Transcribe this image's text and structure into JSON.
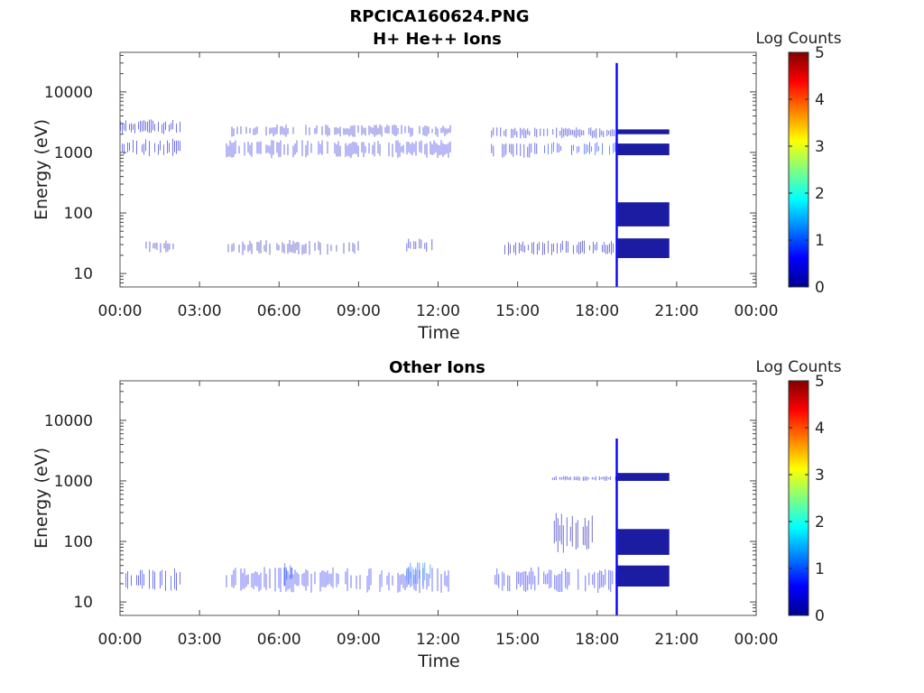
{
  "figure": {
    "title": "RPCICA160624.PNG",
    "x_tick_labels": [
      "00:00",
      "03:00",
      "06:00",
      "09:00",
      "12:00",
      "15:00",
      "18:00",
      "21:00",
      "00:00"
    ]
  },
  "colorscale": {
    "stops": [
      "#00008f",
      "#0000ff",
      "#0080ff",
      "#00ffff",
      "#80ff80",
      "#ffff00",
      "#ff8000",
      "#ff0000",
      "#800000"
    ],
    "label": "Log Counts",
    "ticks": [
      "0",
      "1",
      "2",
      "3",
      "4",
      "5"
    ]
  },
  "chart_data": [
    {
      "type": "heatmap",
      "title": "H+ He++ Ions",
      "xlabel": "Time",
      "ylabel": "Energy (eV)",
      "x_range_hours": [
        0,
        24
      ],
      "y_range_eV": [
        6,
        45000
      ],
      "y_scale": "log",
      "y_tick_labels": [
        "10",
        "100",
        "1000",
        "10000"
      ],
      "colorbar": {
        "label": "Log Counts",
        "range": [
          0,
          5
        ]
      },
      "data_gaps_hours": [
        [
          2.3,
          4.0
        ],
        [
          12.5,
          14.0
        ],
        [
          20.7,
          24.0
        ]
      ],
      "bands": [
        {
          "t_start": 0.0,
          "t_end": 2.3,
          "e_min": 2000,
          "e_max": 3500,
          "log_counts": 0.35
        },
        {
          "t_start": 0.0,
          "t_end": 2.3,
          "e_min": 850,
          "e_max": 1700,
          "log_counts": 0.45
        },
        {
          "t_start": 0.9,
          "t_end": 2.1,
          "e_min": 22,
          "e_max": 36,
          "log_counts": 0.25
        },
        {
          "t_start": 4.0,
          "t_end": 12.5,
          "e_min": 1800,
          "e_max": 2900,
          "log_counts": 0.35
        },
        {
          "t_start": 4.0,
          "t_end": 12.5,
          "e_min": 800,
          "e_max": 1600,
          "log_counts": 0.45
        },
        {
          "t_start": 4.0,
          "t_end": 9.0,
          "e_min": 20,
          "e_max": 36,
          "log_counts": 0.2
        },
        {
          "t_start": 10.8,
          "t_end": 11.9,
          "e_min": 22,
          "e_max": 38,
          "log_counts": 0.35
        },
        {
          "t_start": 14.0,
          "t_end": 18.7,
          "e_min": 1700,
          "e_max": 2600,
          "log_counts": 0.35
        },
        {
          "t_start": 14.0,
          "t_end": 16.0,
          "e_min": 800,
          "e_max": 1500,
          "log_counts": 0.45
        },
        {
          "t_start": 16.0,
          "t_end": 18.7,
          "e_min": 900,
          "e_max": 1500,
          "log_counts": 0.8
        },
        {
          "t_start": 14.5,
          "t_end": 18.7,
          "e_min": 20,
          "e_max": 35,
          "log_counts": 0.2
        },
        {
          "t_start": 18.7,
          "t_end": 18.78,
          "e_min": 6,
          "e_max": 30000,
          "log_counts": 0.6
        },
        {
          "t_start": 18.78,
          "t_end": 20.7,
          "e_min": 900,
          "e_max": 1400,
          "log_counts": 0.05
        },
        {
          "t_start": 18.78,
          "t_end": 20.7,
          "e_min": 2000,
          "e_max": 2400,
          "log_counts": 0.05
        },
        {
          "t_start": 18.78,
          "t_end": 20.7,
          "e_min": 60,
          "e_max": 150,
          "log_counts": 0.05
        },
        {
          "t_start": 18.78,
          "t_end": 20.7,
          "e_min": 18,
          "e_max": 38,
          "log_counts": 0.05
        }
      ]
    },
    {
      "type": "heatmap",
      "title": "Other Ions",
      "xlabel": "Time",
      "ylabel": "Energy (eV)",
      "x_range_hours": [
        0,
        24
      ],
      "y_range_eV": [
        6,
        45000
      ],
      "y_scale": "log",
      "y_tick_labels": [
        "10",
        "100",
        "1000",
        "10000"
      ],
      "colorbar": {
        "label": "Log Counts",
        "range": [
          0,
          5
        ]
      },
      "data_gaps_hours": [
        [
          2.3,
          4.0
        ],
        [
          12.5,
          14.0
        ],
        [
          20.7,
          24.0
        ]
      ],
      "bands": [
        {
          "t_start": 0.0,
          "t_end": 2.3,
          "e_min": 14,
          "e_max": 38,
          "log_counts": 0.6
        },
        {
          "t_start": 4.0,
          "t_end": 12.5,
          "e_min": 14,
          "e_max": 38,
          "log_counts": 0.6
        },
        {
          "t_start": 6.2,
          "t_end": 6.5,
          "e_min": 18,
          "e_max": 45,
          "log_counts": 0.9
        },
        {
          "t_start": 10.8,
          "t_end": 11.8,
          "e_min": 18,
          "e_max": 45,
          "log_counts": 1.1
        },
        {
          "t_start": 14.0,
          "t_end": 18.7,
          "e_min": 14,
          "e_max": 38,
          "log_counts": 0.6
        },
        {
          "t_start": 16.3,
          "t_end": 17.8,
          "e_min": 60,
          "e_max": 300,
          "log_counts": 0.1
        },
        {
          "t_start": 16.3,
          "t_end": 18.7,
          "e_min": 1000,
          "e_max": 1200,
          "log_counts": 0.3
        },
        {
          "t_start": 18.7,
          "t_end": 18.78,
          "e_min": 6,
          "e_max": 5000,
          "log_counts": 0.6
        },
        {
          "t_start": 18.78,
          "t_end": 20.7,
          "e_min": 1000,
          "e_max": 1350,
          "log_counts": 0.05
        },
        {
          "t_start": 18.78,
          "t_end": 20.7,
          "e_min": 60,
          "e_max": 160,
          "log_counts": 0.05
        },
        {
          "t_start": 18.78,
          "t_end": 20.7,
          "e_min": 18,
          "e_max": 40,
          "log_counts": 0.05
        }
      ]
    }
  ]
}
